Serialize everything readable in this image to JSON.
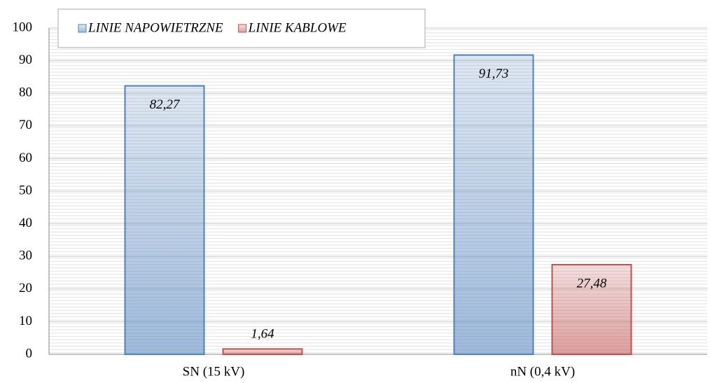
{
  "chart_data": {
    "type": "bar",
    "categories": [
      "SN (15 kV)",
      "nN (0,4 kV)"
    ],
    "series": [
      {
        "name": "LINIE NAPOWIETRZNE",
        "color": "#4f81bd",
        "values": [
          82.27,
          91.73
        ],
        "value_labels": [
          "82,27",
          "91,73"
        ]
      },
      {
        "name": "LINIE KABLOWE",
        "color": "#c0504d",
        "values": [
          1.64,
          27.48
        ],
        "value_labels": [
          "1,64",
          "27,48"
        ]
      }
    ],
    "ylim": [
      0,
      100
    ],
    "yticks": [
      0,
      10,
      20,
      30,
      40,
      50,
      60,
      70,
      80,
      90,
      100
    ],
    "grid": true,
    "legend": "top-left"
  }
}
